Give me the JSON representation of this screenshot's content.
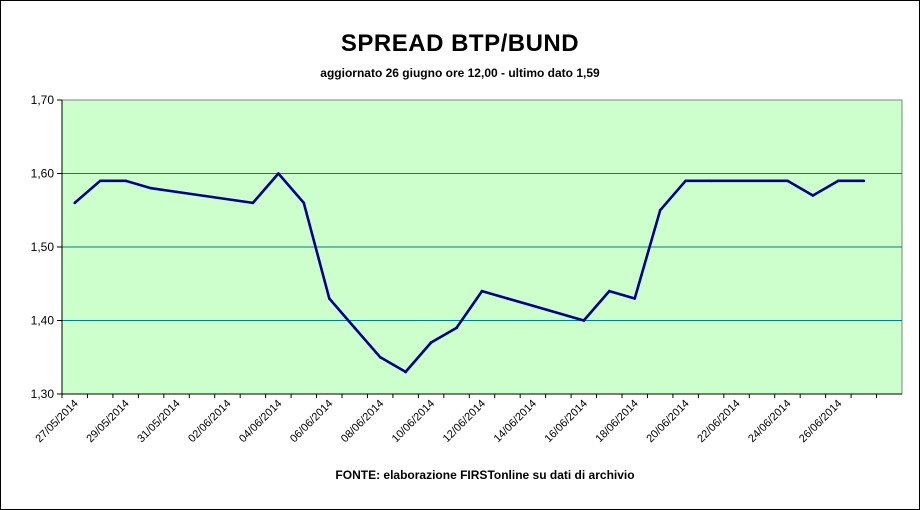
{
  "chart_data": {
    "type": "line",
    "title": "SPREAD BTP/BUND",
    "subtitle": "aggiornato 26 giugno ore 12,00 - ultimo dato 1,59",
    "footer": "FONTE: elaborazione FIRSTonline su dati di archivio",
    "xlabel": "",
    "ylabel": "",
    "ylim": [
      1.3,
      1.7
    ],
    "y_ticks": [
      "1,70",
      "1,60",
      "1,50",
      "1,40",
      "1,30"
    ],
    "y_tick_values": [
      1.7,
      1.6,
      1.5,
      1.4,
      1.3
    ],
    "categories": [
      "27/05/2014",
      "29/05/2014",
      "31/05/2014",
      "02/06/2014",
      "04/06/2014",
      "06/06/2014",
      "08/06/2014",
      "10/06/2014",
      "12/06/2014",
      "14/06/2014",
      "16/06/2014",
      "18/06/2014",
      "20/06/2014",
      "22/06/2014",
      "24/06/2014",
      "26/06/2014"
    ],
    "x_tick_labels": [
      "27/05/2014",
      "29/05/2014",
      "31/05/2014",
      "02/06/2014",
      "04/06/2014",
      "06/06/2014",
      "08/06/2014",
      "10/06/2014",
      "12/06/2014",
      "14/06/2014",
      "16/06/2014",
      "18/06/2014",
      "20/06/2014",
      "22/06/2014",
      "24/06/2014",
      "26/06/2014"
    ],
    "series": [
      {
        "x": [
          "2014-05-27",
          "2014-05-28",
          "2014-05-29",
          "2014-05-30",
          "2014-05-31",
          "2014-06-03",
          "2014-06-04",
          "2014-06-05",
          "2014-06-06",
          "2014-06-07",
          "2014-06-08",
          "2014-06-09",
          "2014-06-10",
          "2014-06-11",
          "2014-06-12",
          "2014-06-13",
          "2014-06-14",
          "2014-06-16",
          "2014-06-17",
          "2014-06-18",
          "2014-06-19",
          "2014-06-20",
          "2014-06-21",
          "2014-06-24",
          "2014-06-25",
          "2014-06-26",
          "2014-06-27"
        ],
        "values": [
          1.56,
          1.59,
          1.59,
          1.58,
          1.575,
          1.56,
          1.6,
          1.56,
          1.43,
          1.39,
          1.35,
          1.33,
          1.37,
          1.39,
          1.44,
          1.43,
          1.42,
          1.4,
          1.44,
          1.43,
          1.55,
          1.59,
          1.59,
          1.59,
          1.57,
          1.59,
          1.59
        ],
        "color": "#00008B"
      }
    ],
    "plot_background": "#CCFFCC",
    "gridline_color": "#008080",
    "line_color": "#00008B",
    "grid": true,
    "legend": "none"
  }
}
